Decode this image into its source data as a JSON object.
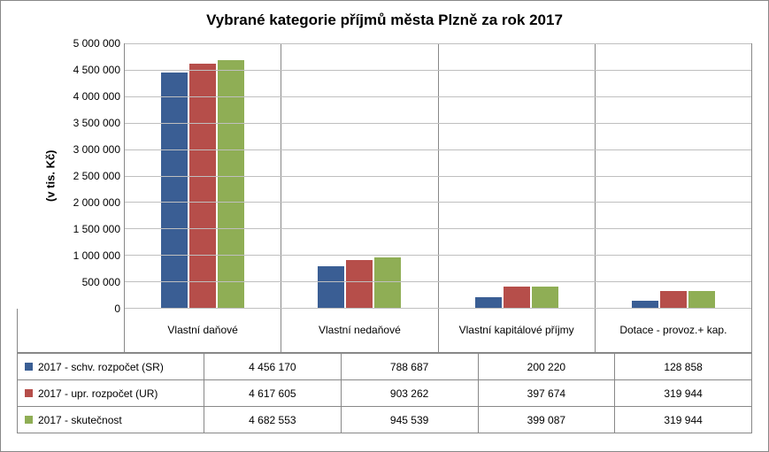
{
  "chart": {
    "type": "bar",
    "title": "Vybrané kategorie příjmů města Plzně za rok 2017",
    "title_fontsize": 17,
    "ylabel": "(v tis. Kč)",
    "label_fontsize": 13,
    "background_color": "#ffffff",
    "grid_color": "#bfbfbf",
    "border_color": "#888888",
    "ylim": [
      0,
      5000000
    ],
    "ytick_step": 500000,
    "yticks": [
      "0",
      "500 000",
      "1 000 000",
      "1 500 000",
      "2 000 000",
      "2 500 000",
      "3 000 000",
      "3 500 000",
      "4 000 000",
      "4 500 000",
      "5 000 000"
    ],
    "tick_fontsize": 12,
    "categories": [
      "Vlastní daňové",
      "Vlastní nedaňové",
      "Vlastní kapitálové příjmy",
      "Dotace - provoz.+ kap."
    ],
    "series": [
      {
        "name": "2017 - schv. rozpočet (SR)",
        "color": "#3a5e94",
        "values": [
          4456170,
          788687,
          200220,
          128858
        ],
        "labels": [
          "4 456 170",
          "788 687",
          "200 220",
          "128 858"
        ]
      },
      {
        "name": "2017 - upr. rozpočet (UR)",
        "color": "#b64e4a",
        "values": [
          4617605,
          903262,
          397674,
          319944
        ],
        "labels": [
          "4 617 605",
          "903 262",
          "397 674",
          "319 944"
        ]
      },
      {
        "name": "2017 - skutečnost",
        "color": "#8fae55",
        "values": [
          4682553,
          945539,
          399087,
          319944
        ],
        "labels": [
          "4 682 553",
          "945 539",
          "399 087",
          "319 944"
        ]
      }
    ],
    "bar_gap": 2
  }
}
